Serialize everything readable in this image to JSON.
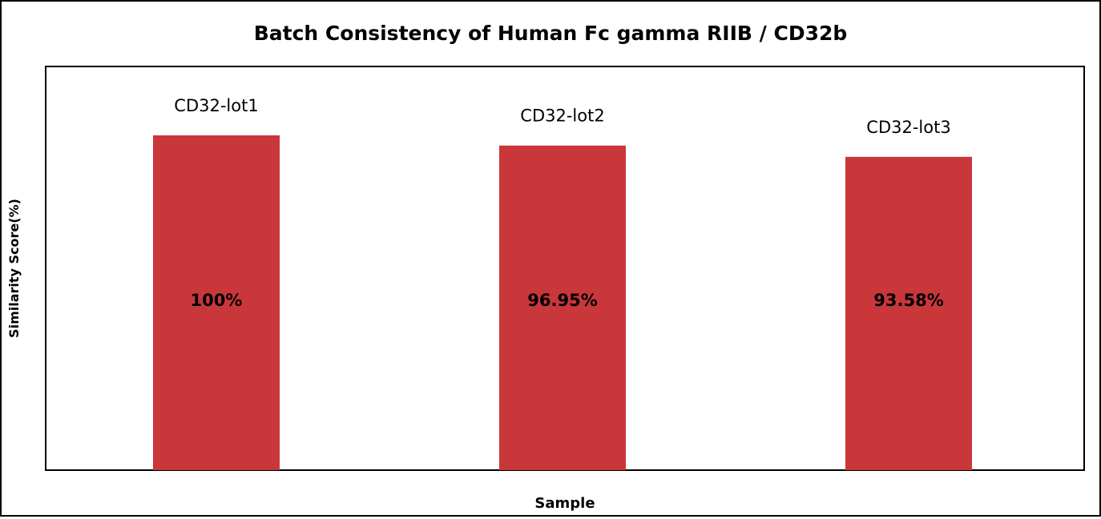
{
  "chart_data": {
    "type": "bar",
    "title": "Batch Consistency of Human Fc gamma RIIB / CD32b",
    "xlabel": "Sample",
    "ylabel": "Similarity Score(%)",
    "categories": [
      "CD32-lot1",
      "CD32-lot2",
      "CD32-lot3"
    ],
    "values": [
      100,
      96.95,
      93.58
    ],
    "data_labels": [
      "100%",
      "96.95%",
      "93.58%"
    ],
    "ylim": [
      0,
      100
    ],
    "grid": false,
    "legend": "none",
    "bar_color": "#c9373a"
  }
}
